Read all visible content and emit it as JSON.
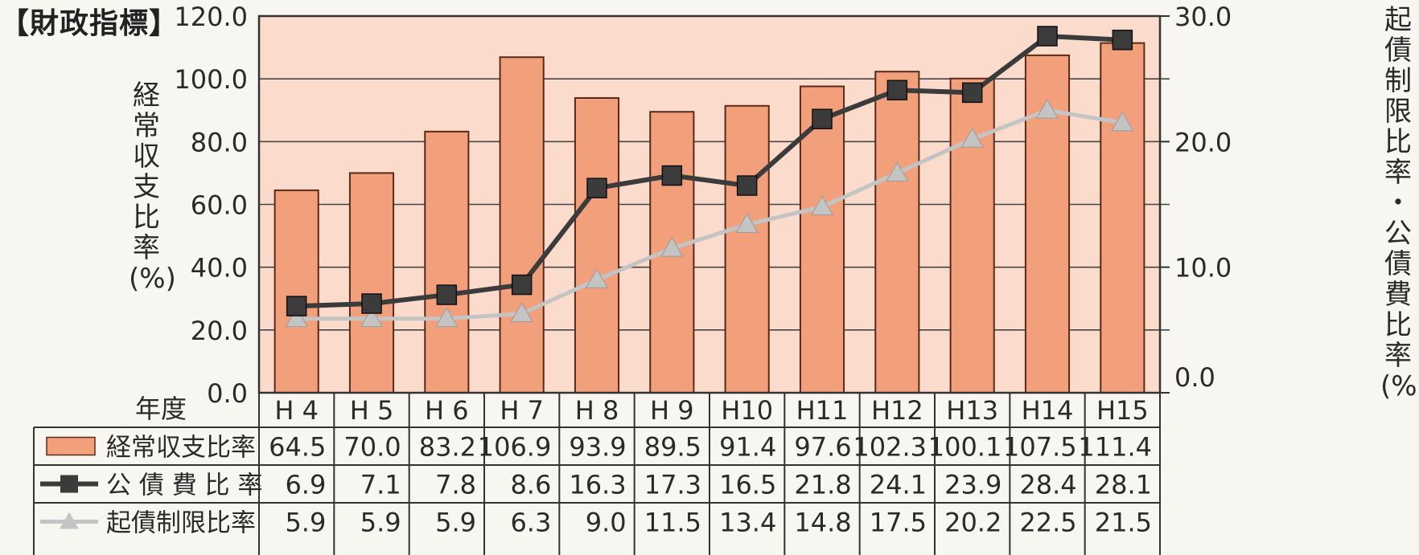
{
  "heading": "【財政指標】",
  "left_axis_label_chars": [
    "経",
    "常",
    "収",
    "支",
    "比",
    "率",
    "(%)"
  ],
  "right_axis_label_chars": [
    "起",
    "債",
    "制",
    "限",
    "比",
    "率",
    "・",
    "公",
    "債",
    "費",
    "比",
    "率",
    "(%)"
  ],
  "chart_data": {
    "type": "bar",
    "categories": [
      "H 4",
      "H 5",
      "H 6",
      "H 7",
      "H 8",
      "H 9",
      "H10",
      "H11",
      "H12",
      "H13",
      "H14",
      "H15"
    ],
    "category_header": "年度",
    "series": [
      {
        "name": "経常収支比率",
        "kind": "bar",
        "axis": "left",
        "color": "#f2a07c",
        "values": [
          64.5,
          70.0,
          83.2,
          106.9,
          93.9,
          89.5,
          91.4,
          97.6,
          102.3,
          100.1,
          107.5,
          111.4
        ],
        "display": [
          "64.5",
          "70.0",
          "83.2",
          "106.9",
          "93.9",
          "89.5",
          "91.4",
          "97.6",
          "102.3",
          "100.1",
          "107.5",
          "111.4"
        ]
      },
      {
        "name": "公 債 費 比 率",
        "kind": "line",
        "axis": "right",
        "marker": "square",
        "color": "#3b3b3b",
        "values": [
          6.9,
          7.1,
          7.8,
          8.6,
          16.3,
          17.3,
          16.5,
          21.8,
          24.1,
          23.9,
          28.4,
          28.1
        ],
        "display": [
          "6.9",
          "7.1",
          "7.8",
          "8.6",
          "16.3",
          "17.3",
          "16.5",
          "21.8",
          "24.1",
          "23.9",
          "28.4",
          "28.1"
        ]
      },
      {
        "name": "起債制限比率",
        "kind": "line",
        "axis": "right",
        "marker": "triangle",
        "color": "#c4c4c4",
        "values": [
          5.9,
          5.9,
          5.9,
          6.3,
          9.0,
          11.5,
          13.4,
          14.8,
          17.5,
          20.2,
          22.5,
          21.5
        ],
        "display": [
          "5.9",
          "5.9",
          "5.9",
          "6.3",
          "9.0",
          "11.5",
          "13.4",
          "14.8",
          "17.5",
          "20.2",
          "22.5",
          "21.5"
        ]
      }
    ],
    "y_left": {
      "ylim": [
        0,
        120
      ],
      "ticks": [
        "0.0",
        "20.0",
        "40.0",
        "60.0",
        "80.0",
        "100.0",
        "120.0"
      ]
    },
    "y_right": {
      "ylim": [
        0,
        30
      ],
      "ticks": [
        "0.0",
        "10.0",
        "20.0",
        "30.0"
      ]
    },
    "grid": true,
    "colors": {
      "plot_bg": "#fbdccc",
      "grid": "#444444",
      "bar": "#f2a07c",
      "bar_edge": "#5a2a18"
    }
  }
}
